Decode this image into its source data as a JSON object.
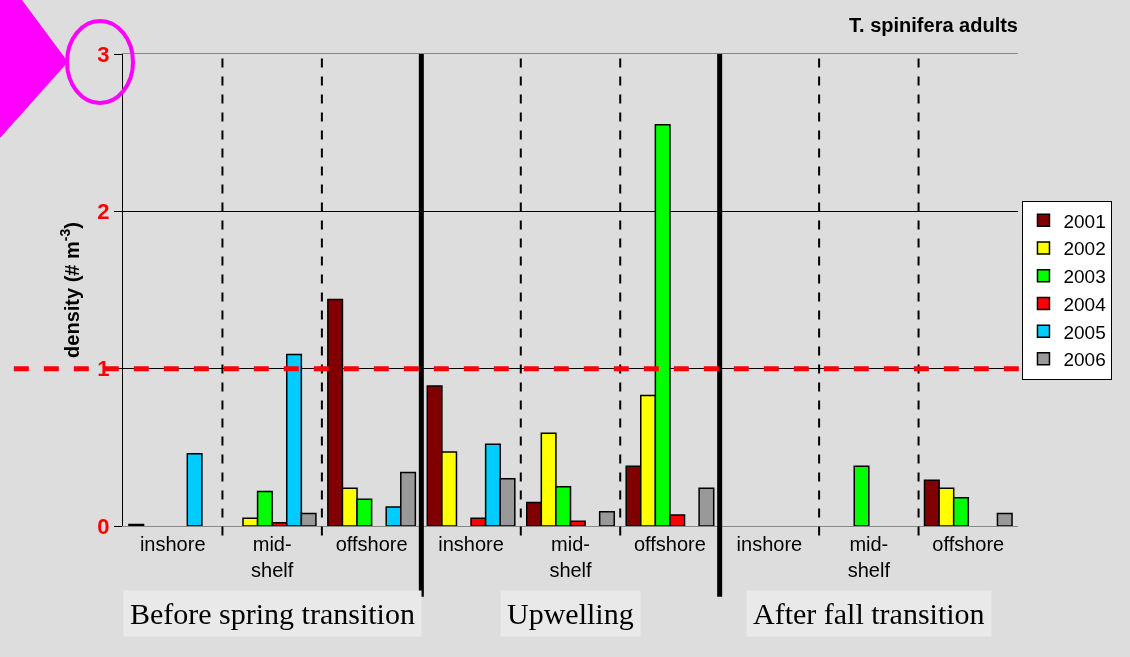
{
  "chart_data": {
    "type": "bar",
    "title": "T. spinifera adults",
    "ylabel": "density (# m$^{-3}$)",
    "categories": [
      "inshore",
      "mid-\nshelf",
      "offshore",
      "inshore",
      "mid-\nshelf",
      "offshore",
      "inshore",
      "mid-\nshelf",
      "offshore"
    ],
    "series": [
      {
        "name": "2001",
        "color": "#800000",
        "values": [
          0.01,
          null,
          1.44,
          0.89,
          0.15,
          0.38,
          null,
          null,
          0.29
        ]
      },
      {
        "name": "2002",
        "color": "#ffff00",
        "values": [
          null,
          0.05,
          0.24,
          0.47,
          0.59,
          0.83,
          null,
          null,
          0.24
        ]
      },
      {
        "name": "2003",
        "color": "#00ff00",
        "values": [
          null,
          0.22,
          0.17,
          null,
          0.25,
          2.55,
          null,
          0.38,
          0.18
        ]
      },
      {
        "name": "2004",
        "color": "#ff0000",
        "values": [
          null,
          0.02,
          null,
          0.05,
          0.03,
          0.07,
          null,
          null,
          null
        ]
      },
      {
        "name": "2005",
        "color": "#00ccff",
        "values": [
          0.46,
          1.09,
          0.12,
          0.52,
          null,
          null,
          null,
          null,
          null
        ]
      },
      {
        "name": "2006",
        "color": "#999999",
        "values": [
          null,
          0.08,
          0.34,
          0.3,
          0.09,
          0.24,
          null,
          null,
          0.08
        ]
      }
    ],
    "ylim": [
      0,
      3
    ],
    "yticks": [
      0,
      1,
      2,
      3
    ],
    "grid": "y",
    "legend": "right",
    "ref_lines": [
      {
        "axis": "y",
        "value": 1,
        "color": "#ff0000",
        "line_style": "dashed"
      }
    ],
    "annotations": [
      "Before spring transition",
      "Upwelling",
      "After fall transition"
    ]
  }
}
